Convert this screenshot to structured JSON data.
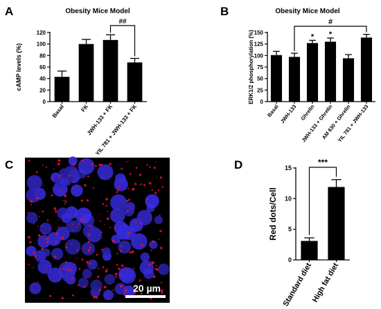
{
  "panels": {
    "A": {
      "letter": "A",
      "chart_title": "Obesity Mice Model",
      "significance": "##"
    },
    "B": {
      "letter": "B",
      "chart_title": "Obesity Mice Model",
      "significance": "#"
    },
    "C": {
      "letter": "C",
      "scale_bar_label": "20 µm",
      "image_colors": {
        "background": "#000000",
        "nuclei": "#2a2ad8",
        "signal": "#e01030"
      }
    },
    "D": {
      "letter": "D",
      "significance": "***"
    }
  },
  "chart_data": [
    {
      "panel": "A",
      "type": "bar",
      "title": "Obesity Mice Model",
      "xlabel": "",
      "ylabel": "cAMP levels (%)",
      "categories": [
        "Basal",
        "FK",
        "JWH-133 + FK",
        "YIL 781 + JWH-133 + FK"
      ],
      "values": [
        43,
        100,
        107,
        68
      ],
      "errors": [
        10,
        8,
        9,
        7
      ],
      "ylim": [
        0,
        120
      ],
      "yticks": [
        0,
        20,
        40,
        60,
        80,
        100,
        120
      ],
      "bar_color": "#000000",
      "significance_pairs": [
        {
          "from": 2,
          "to": 3,
          "label": "##"
        }
      ],
      "grid": false
    },
    {
      "panel": "B",
      "type": "bar",
      "title": "Obesity Mice Model",
      "xlabel": "",
      "ylabel": "ERK1/2 phosphorylation (%)",
      "categories": [
        "Basal",
        "JWH-133",
        "Ghrelin",
        "JWH-133 + Ghrelin",
        "AM 630 + Ghrelin",
        "YIL 781 + JWH-133"
      ],
      "values": [
        101,
        97,
        127,
        130,
        94,
        139
      ],
      "errors": [
        8,
        8,
        6,
        8,
        8,
        7
      ],
      "ylim": [
        0,
        150
      ],
      "yticks": [
        0,
        25,
        50,
        75,
        100,
        125,
        150
      ],
      "bar_color": "#000000",
      "bar_markers": [
        "",
        "",
        "*",
        "*",
        "",
        ""
      ],
      "significance_pairs": [
        {
          "from": 1,
          "to": 5,
          "label": "#"
        }
      ],
      "grid": false
    },
    {
      "panel": "D",
      "type": "bar",
      "xlabel": "",
      "ylabel": "Red dots/Cell",
      "categories": [
        "Standard diet",
        "High fat diet"
      ],
      "values": [
        3.1,
        11.9
      ],
      "errors": [
        0.5,
        1.2
      ],
      "ylim": [
        0,
        15
      ],
      "yticks": [
        0,
        5,
        10,
        15
      ],
      "bar_color": "#000000",
      "significance_pairs": [
        {
          "from": 0,
          "to": 1,
          "label": "***"
        }
      ],
      "grid": false
    }
  ]
}
